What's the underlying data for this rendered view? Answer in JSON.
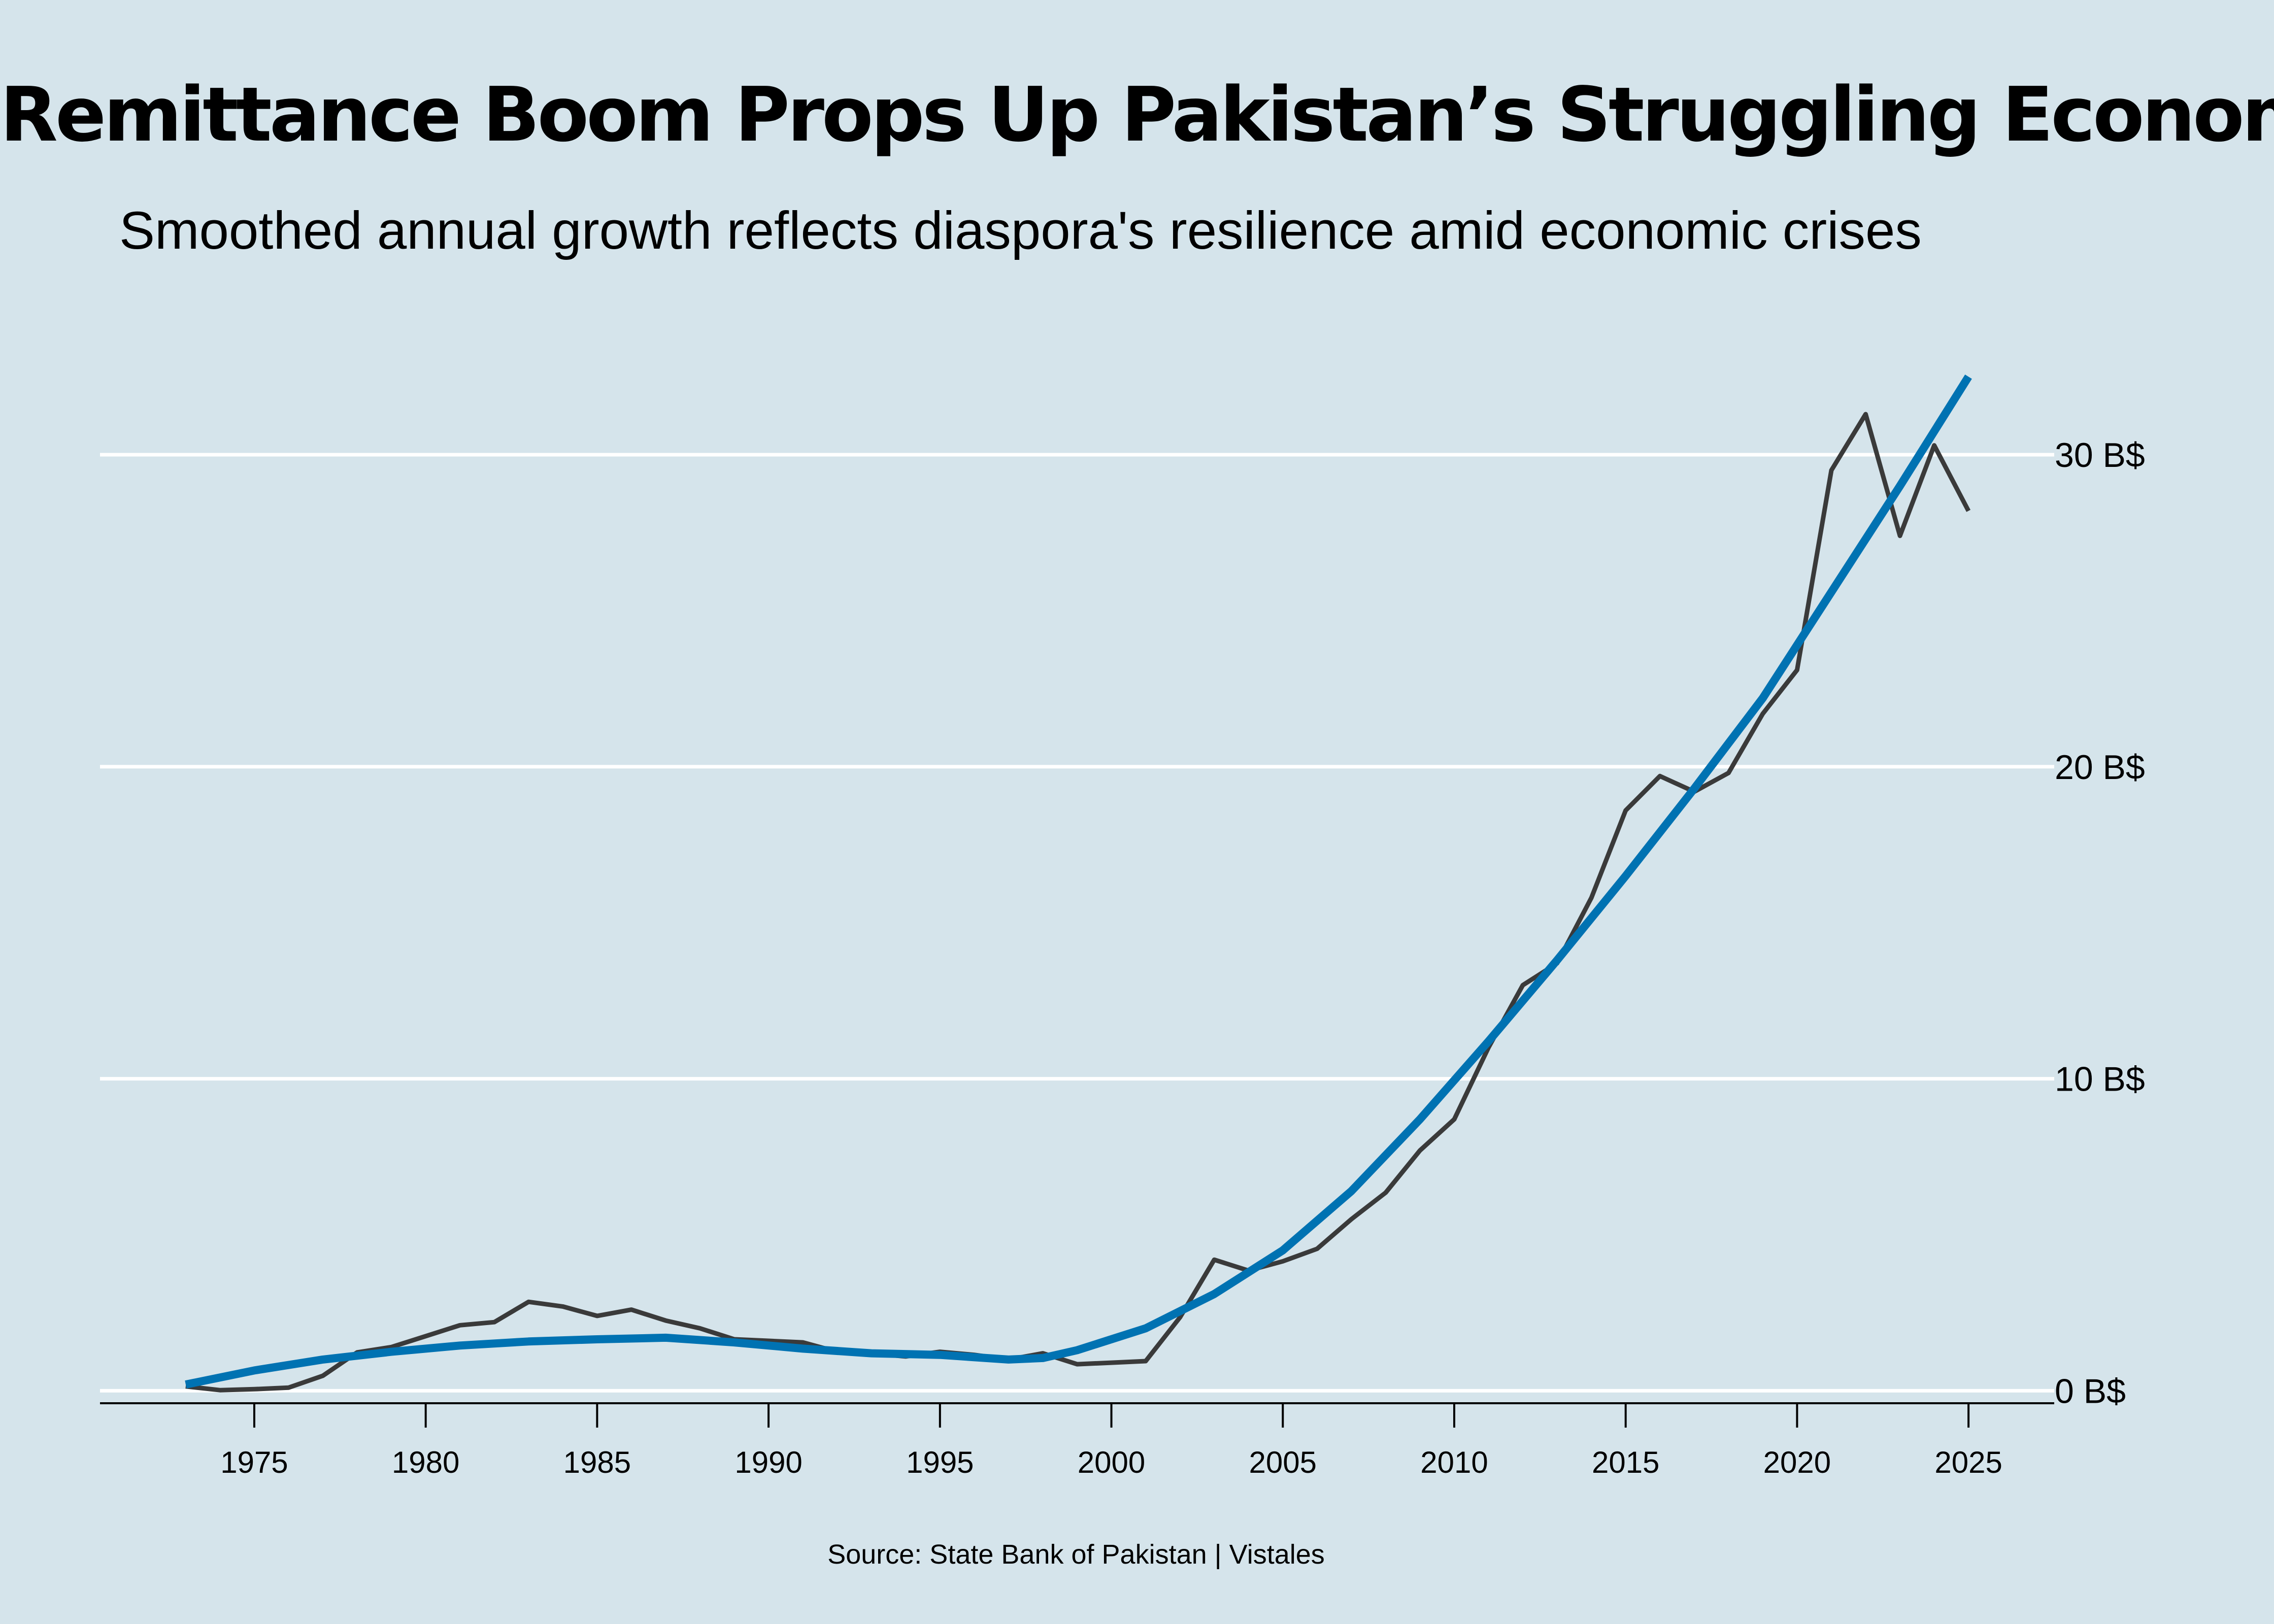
{
  "title": "Remittance Boom Props Up Pakistan’s Struggling Economy",
  "subtitle": "Smoothed annual growth reflects diaspora's resilience amid economic crises",
  "source": "Source: State Bank of Pakistan | Vistales",
  "colors": {
    "background": "#d5e4eb",
    "raw_line": "#3a3a3a",
    "smooth_line": "#0072b2",
    "grid": "#ffffff",
    "axis": "#000000"
  },
  "chart_data": {
    "type": "line",
    "title": "Remittance Boom Props Up Pakistan’s Struggling Economy",
    "subtitle": "Smoothed annual growth reflects diaspora's resilience amid economic crises",
    "xlabel": "",
    "ylabel": "",
    "xlim": [
      1970.5,
      2027.5
    ],
    "ylim": [
      -0.4,
      32.7
    ],
    "y_axis_position": "right",
    "grid": "horizontal",
    "legend": "none",
    "x_ticks": [
      {
        "value": 1975,
        "label": "1975"
      },
      {
        "value": 1980,
        "label": "1980"
      },
      {
        "value": 1985,
        "label": "1985"
      },
      {
        "value": 1990,
        "label": "1990"
      },
      {
        "value": 1995,
        "label": "1995"
      },
      {
        "value": 2000,
        "label": "2000"
      },
      {
        "value": 2005,
        "label": "2005"
      },
      {
        "value": 2010,
        "label": "2010"
      },
      {
        "value": 2015,
        "label": "2015"
      },
      {
        "value": 2020,
        "label": "2020"
      },
      {
        "value": 2025,
        "label": "2025"
      }
    ],
    "y_ticks": [
      {
        "value": 0,
        "label": "0 B$"
      },
      {
        "value": 10,
        "label": "10 B$"
      },
      {
        "value": 20,
        "label": "20 B$"
      },
      {
        "value": 30,
        "label": "30 B$"
      }
    ],
    "series": [
      {
        "style": "raw",
        "color": "#3a3a3a",
        "x": [
          1973,
          1974,
          1975,
          1976,
          1977,
          1978,
          1979,
          1980,
          1981,
          1982,
          1983,
          1984,
          1985,
          1986,
          1987,
          1988,
          1989,
          1990,
          1991,
          1992,
          1993,
          1994,
          1995,
          1996,
          1997,
          1998,
          1999,
          2000,
          2001,
          2002,
          2003,
          2004,
          2005,
          2006,
          2007,
          2008,
          2009,
          2010,
          2011,
          2012,
          2013,
          2014,
          2015,
          2016,
          2017,
          2018,
          2019,
          2020,
          2021,
          2022,
          2023,
          2024,
          2025
        ],
        "y": [
          0.14,
          0.02,
          0.05,
          0.1,
          0.48,
          1.23,
          1.4,
          1.75,
          2.1,
          2.2,
          2.85,
          2.7,
          2.4,
          2.6,
          2.25,
          2.0,
          1.65,
          1.6,
          1.55,
          1.25,
          1.2,
          1.1,
          1.25,
          1.15,
          1.0,
          1.2,
          0.85,
          0.9,
          0.95,
          2.35,
          4.2,
          3.85,
          4.15,
          4.55,
          5.5,
          6.35,
          7.7,
          8.7,
          11.0,
          13.0,
          13.7,
          15.8,
          18.6,
          19.7,
          19.2,
          19.8,
          21.7,
          23.1,
          29.5,
          31.3,
          27.4,
          30.3,
          28.2
        ]
      },
      {
        "style": "smoothed",
        "color": "#0072b2",
        "x": [
          1973,
          1975,
          1977,
          1979,
          1981,
          1983,
          1985,
          1987,
          1989,
          1991,
          1993,
          1995,
          1997,
          1998,
          1999,
          2001,
          2003,
          2005,
          2007,
          2009,
          2011,
          2013,
          2015,
          2017,
          2019,
          2021,
          2023,
          2025
        ],
        "y": [
          0.2,
          0.65,
          1.0,
          1.25,
          1.45,
          1.58,
          1.65,
          1.7,
          1.55,
          1.35,
          1.2,
          1.15,
          1.0,
          1.05,
          1.3,
          2.0,
          3.1,
          4.5,
          6.4,
          8.7,
          11.2,
          13.8,
          16.5,
          19.3,
          22.2,
          25.6,
          29.0,
          32.5
        ]
      }
    ]
  }
}
